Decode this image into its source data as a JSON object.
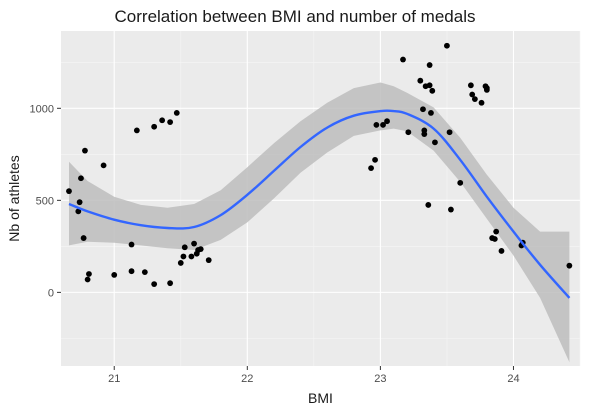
{
  "chart_data": {
    "type": "scatter",
    "title": "Correlation between BMI and number of medals",
    "xlabel": "BMI",
    "ylabel": "Nb of athletes",
    "xlim": [
      20.6,
      24.5
    ],
    "ylim": [
      -400,
      1420
    ],
    "x_ticks": [
      21,
      22,
      23,
      24
    ],
    "y_ticks": [
      0,
      500,
      1000
    ],
    "x_tick_labels": [
      "21",
      "22",
      "23",
      "24"
    ],
    "y_tick_labels": [
      "0",
      "500",
      "1000"
    ],
    "grid": true,
    "legend": "none",
    "colors": {
      "panel": "#ebebeb",
      "grid_major": "#ffffff",
      "grid_minor": "#f5f5f5",
      "point": "#000000",
      "smooth_line": "#3366ff",
      "ribbon": "#bdbdbd"
    },
    "points": [
      {
        "x": 20.66,
        "y": 550
      },
      {
        "x": 20.73,
        "y": 440
      },
      {
        "x": 20.74,
        "y": 490
      },
      {
        "x": 20.75,
        "y": 620
      },
      {
        "x": 20.77,
        "y": 295
      },
      {
        "x": 20.78,
        "y": 770
      },
      {
        "x": 20.8,
        "y": 70
      },
      {
        "x": 20.81,
        "y": 100
      },
      {
        "x": 20.92,
        "y": 690
      },
      {
        "x": 21.0,
        "y": 95
      },
      {
        "x": 21.13,
        "y": 260
      },
      {
        "x": 21.13,
        "y": 115
      },
      {
        "x": 21.17,
        "y": 880
      },
      {
        "x": 21.23,
        "y": 110
      },
      {
        "x": 21.3,
        "y": 45
      },
      {
        "x": 21.3,
        "y": 900
      },
      {
        "x": 21.36,
        "y": 935
      },
      {
        "x": 21.42,
        "y": 50
      },
      {
        "x": 21.42,
        "y": 925
      },
      {
        "x": 21.47,
        "y": 975
      },
      {
        "x": 21.5,
        "y": 160
      },
      {
        "x": 21.52,
        "y": 195
      },
      {
        "x": 21.53,
        "y": 245
      },
      {
        "x": 21.58,
        "y": 195
      },
      {
        "x": 21.6,
        "y": 265
      },
      {
        "x": 21.62,
        "y": 210
      },
      {
        "x": 21.63,
        "y": 230
      },
      {
        "x": 21.65,
        "y": 235
      },
      {
        "x": 21.71,
        "y": 175
      },
      {
        "x": 22.93,
        "y": 675
      },
      {
        "x": 22.96,
        "y": 720
      },
      {
        "x": 22.97,
        "y": 910
      },
      {
        "x": 23.02,
        "y": 910
      },
      {
        "x": 23.05,
        "y": 930
      },
      {
        "x": 23.17,
        "y": 1265
      },
      {
        "x": 23.21,
        "y": 870
      },
      {
        "x": 23.3,
        "y": 1150
      },
      {
        "x": 23.32,
        "y": 995
      },
      {
        "x": 23.33,
        "y": 860
      },
      {
        "x": 23.33,
        "y": 880
      },
      {
        "x": 23.34,
        "y": 1120
      },
      {
        "x": 23.36,
        "y": 475
      },
      {
        "x": 23.37,
        "y": 1235
      },
      {
        "x": 23.37,
        "y": 1125
      },
      {
        "x": 23.38,
        "y": 975
      },
      {
        "x": 23.39,
        "y": 1095
      },
      {
        "x": 23.41,
        "y": 815
      },
      {
        "x": 23.5,
        "y": 1340
      },
      {
        "x": 23.52,
        "y": 870
      },
      {
        "x": 23.53,
        "y": 450
      },
      {
        "x": 23.6,
        "y": 595
      },
      {
        "x": 23.68,
        "y": 1125
      },
      {
        "x": 23.69,
        "y": 1075
      },
      {
        "x": 23.71,
        "y": 1050
      },
      {
        "x": 23.76,
        "y": 1030
      },
      {
        "x": 23.79,
        "y": 1120
      },
      {
        "x": 23.8,
        "y": 1100
      },
      {
        "x": 23.8,
        "y": 1110
      },
      {
        "x": 23.84,
        "y": 295
      },
      {
        "x": 23.86,
        "y": 290
      },
      {
        "x": 23.87,
        "y": 330
      },
      {
        "x": 23.91,
        "y": 225
      },
      {
        "x": 24.06,
        "y": 255
      },
      {
        "x": 24.07,
        "y": 270
      },
      {
        "x": 24.42,
        "y": 145
      }
    ],
    "smooth": {
      "x": [
        20.66,
        20.8,
        21.0,
        21.2,
        21.4,
        21.6,
        21.8,
        22.0,
        22.2,
        22.4,
        22.6,
        22.8,
        23.0,
        23.1,
        23.2,
        23.4,
        23.6,
        23.8,
        24.0,
        24.2,
        24.42
      ],
      "y": [
        480,
        440,
        395,
        365,
        350,
        355,
        420,
        530,
        660,
        790,
        895,
        960,
        985,
        985,
        970,
        890,
        720,
        520,
        330,
        150,
        -30
      ],
      "lower": [
        255,
        275,
        270,
        255,
        240,
        230,
        285,
        380,
        510,
        650,
        760,
        850,
        880,
        890,
        875,
        770,
        600,
        400,
        200,
        -30,
        -380
      ],
      "upper": [
        710,
        605,
        520,
        475,
        460,
        480,
        555,
        680,
        810,
        930,
        1030,
        1110,
        1140,
        1120,
        1085,
        1005,
        840,
        640,
        460,
        330,
        330
      ]
    }
  }
}
